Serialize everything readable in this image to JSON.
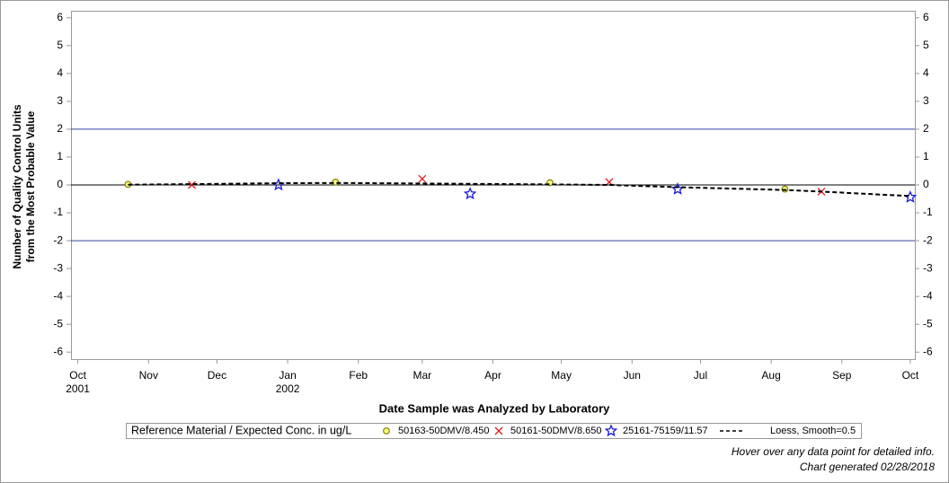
{
  "chart_data": {
    "type": "scatter",
    "y_label": [
      "Number of Quality Control Units",
      "from the Most Probable Value"
    ],
    "x_label": "Date Sample was Analyzed by Laboratory",
    "xlim": [
      -3,
      367
    ],
    "xticks": [
      {
        "value": 0,
        "label": "Oct\n2001"
      },
      {
        "value": 31,
        "label": "Nov"
      },
      {
        "value": 61,
        "label": "Dec"
      },
      {
        "value": 92,
        "label": "Jan\n2002"
      },
      {
        "value": 123,
        "label": "Feb"
      },
      {
        "value": 151,
        "label": "Mar"
      },
      {
        "value": 182,
        "label": "Apr"
      },
      {
        "value": 212,
        "label": "May"
      },
      {
        "value": 243,
        "label": "Jun"
      },
      {
        "value": 273,
        "label": "Jul"
      },
      {
        "value": 304,
        "label": "Aug"
      },
      {
        "value": 335,
        "label": "Sep"
      },
      {
        "value": 365,
        "label": "Oct"
      }
    ],
    "ylim": [
      -6.25,
      6.25
    ],
    "yticks": [
      -6,
      -5,
      -4,
      -3,
      -2,
      -1,
      0,
      1,
      2,
      3,
      4,
      5,
      6
    ],
    "reference_lines": [
      {
        "value": 2,
        "color": "#3344a0"
      },
      {
        "value": -2,
        "color": "#3344a0"
      },
      {
        "value": 0,
        "color": "#000000"
      }
    ],
    "legend_title": "Reference Material / Expected Conc. in ug/L",
    "series": [
      {
        "name": "50163-50DMV/8.450",
        "marker": "circle",
        "color": "#808000",
        "x": [
          22,
          113,
          207,
          310
        ],
        "values": [
          0.02,
          0.1,
          0.08,
          -0.15
        ]
      },
      {
        "name": "50161-50DMV/8.650",
        "marker": "cross",
        "color": "#e8181e",
        "x": [
          50,
          151,
          233,
          326
        ],
        "values": [
          0,
          0.22,
          0.1,
          -0.24
        ]
      },
      {
        "name": "25161-75159/11.57",
        "marker": "star",
        "color": "#1a1ae0",
        "x": [
          88,
          172,
          263,
          365
        ],
        "values": [
          0,
          -0.32,
          -0.15,
          -0.44
        ]
      },
      {
        "name": "Loess, Smooth=0.5",
        "marker": "line",
        "color": "#000000",
        "x": [
          22,
          50,
          88,
          113,
          151,
          172,
          207,
          233,
          263,
          310,
          326,
          365
        ],
        "values": [
          0.01,
          0.03,
          0.06,
          0.07,
          0.05,
          0.04,
          0.02,
          0.0,
          -0.08,
          -0.18,
          -0.24,
          -0.4
        ]
      }
    ],
    "footnotes": [
      "Hover over any data point for detailed info.",
      "Chart generated 02/28/2018"
    ]
  }
}
